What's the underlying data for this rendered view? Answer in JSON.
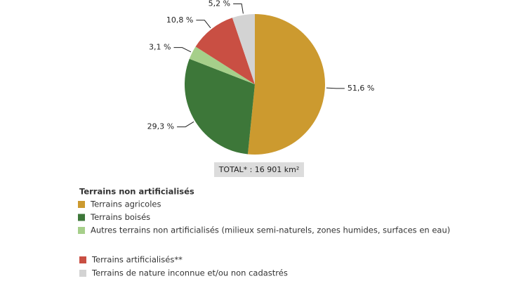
{
  "chart_data": {
    "type": "pie",
    "categories": [
      "Terrains agricoles",
      "Terrains boisés",
      "Autres terrains non artificialisés (milieux semi-naturels, zones humides, surfaces en eau)",
      "Terrains artificialisés**",
      "Terrains de nature inconnue et/ou non cadastrés"
    ],
    "values": [
      51.6,
      29.3,
      3.1,
      10.8,
      5.2
    ],
    "value_labels": [
      "51,6 %",
      "29,3 %",
      "3,1 %",
      "10,8 %",
      "5,2 %"
    ],
    "colors": [
      "#cc9a2f",
      "#3d7739",
      "#a6cf8a",
      "#c94f43",
      "#d3d3d3"
    ],
    "legend_title": "Terrains non artificialisés",
    "annotation": "TOTAL* : 16 901 km²"
  }
}
